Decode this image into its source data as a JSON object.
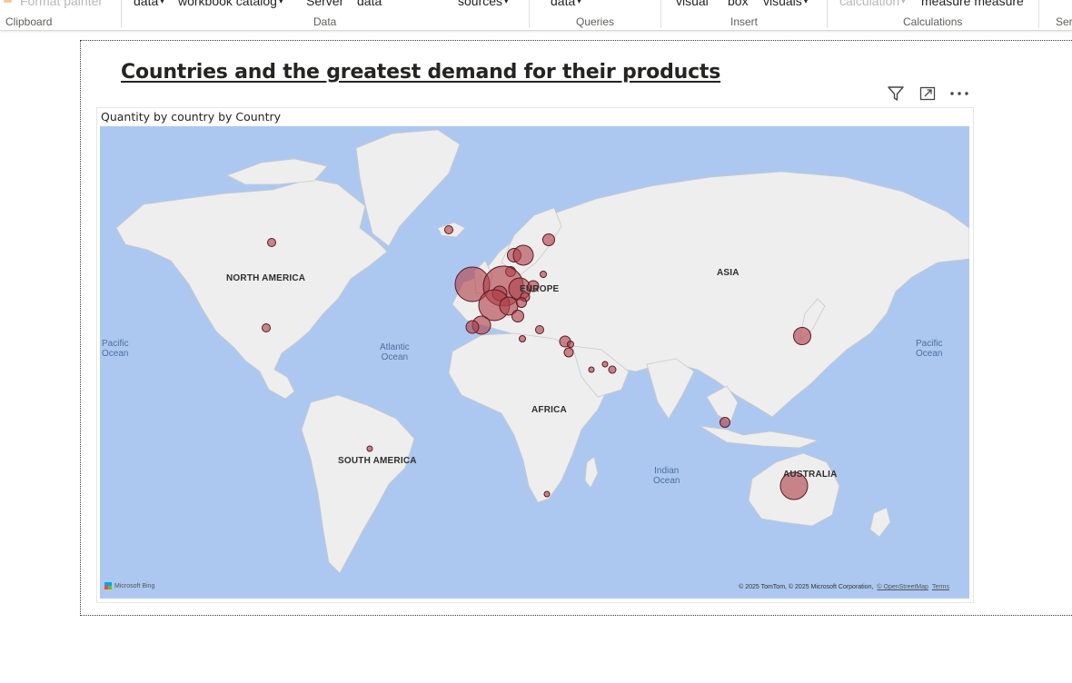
{
  "ribbon": {
    "groups": [
      {
        "name": "Clipboard",
        "items": [
          "Format painter"
        ]
      },
      {
        "name": "Data",
        "items": [
          "data",
          "workbook catalog",
          "Server",
          "data"
        ]
      },
      {
        "name": "",
        "items": [
          "sources"
        ]
      },
      {
        "name": "Queries",
        "items": [
          "data"
        ]
      },
      {
        "name": "Insert",
        "items": [
          "visual",
          "box",
          "visuals"
        ]
      },
      {
        "name": "Calculations",
        "items": [
          "calculation",
          "measure measure"
        ]
      },
      {
        "name": "Ser",
        "items": []
      }
    ]
  },
  "report": {
    "title": "Countries and the greatest demand for their products"
  },
  "visual": {
    "subtitle": "Quantity by country by Country",
    "header_icons": [
      "filter-icon",
      "focus-mode-icon",
      "more-options-icon"
    ],
    "map": {
      "region_labels": [
        "NORTH AMERICA",
        "EUROPE",
        "ASIA",
        "AFRICA",
        "SOUTH AMERICA",
        "AUSTRALIA"
      ],
      "ocean_labels": [
        {
          "line1": "Pacific",
          "line2": "Ocean"
        },
        {
          "line1": "Atlantic",
          "line2": "Ocean"
        },
        {
          "line1": "Indian",
          "line2": "Ocean"
        },
        {
          "line1": "Pacific",
          "line2": "Ocean"
        }
      ],
      "logo_text": "Microsoft Bing",
      "copyright": "© 2025 TomTom, © 2025 Microsoft Corporation,",
      "copyright_links": [
        "© OpenStreetMap",
        "Terms"
      ],
      "bubble_color": "#b0414a",
      "land_color": "#eeeeee",
      "ocean_color": "#adc8f0"
    }
  }
}
